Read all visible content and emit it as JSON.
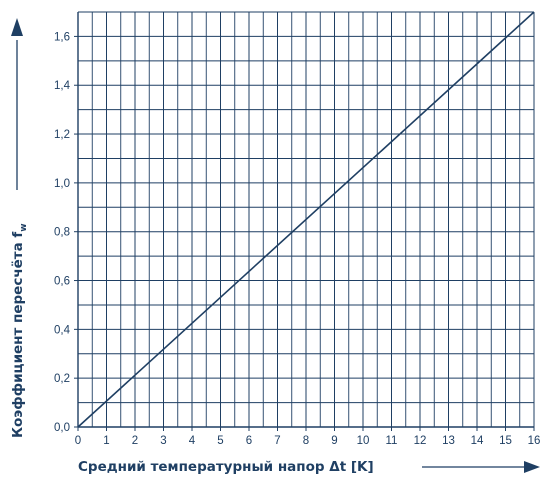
{
  "chart_data": {
    "type": "line",
    "title": "",
    "xlabel": "Средний температурный напор",
    "xlabel_symbol": "Δt [K]",
    "ylabel": "Коэффициент пересчёта",
    "ylabel_symbol": "f",
    "ylabel_subscript": "w",
    "xlim": [
      0,
      16
    ],
    "ylim": [
      0,
      1.7
    ],
    "x_ticks": [
      "0",
      "1",
      "2",
      "3",
      "4",
      "5",
      "6",
      "7",
      "8",
      "9",
      "10",
      "11",
      "12",
      "13",
      "14",
      "15",
      "16"
    ],
    "y_ticks": [
      "0,0",
      "0,2",
      "0,4",
      "0,6",
      "0,8",
      "1,0",
      "1,2",
      "1,4",
      "1,6"
    ],
    "y_tick_values": [
      0,
      0.2,
      0.4,
      0.6,
      0.8,
      1.0,
      1.2,
      1.4,
      1.6
    ],
    "grid": true,
    "series": [
      {
        "x": [
          0,
          16
        ],
        "y": [
          0,
          1.7
        ]
      }
    ],
    "colors": {
      "line": "#1f3f63",
      "grid": "#1f3f63",
      "text": "#1f3f63"
    }
  }
}
